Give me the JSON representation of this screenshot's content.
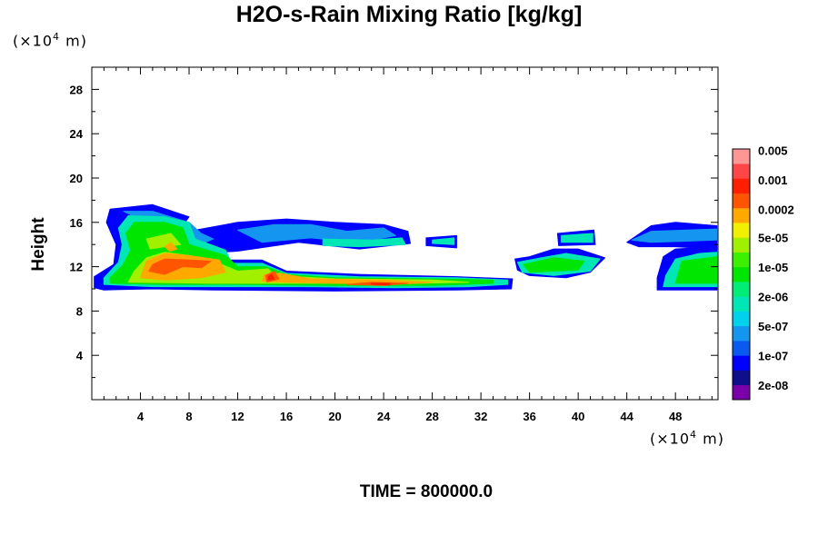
{
  "chart_data": {
    "type": "contour",
    "title": "H2O-s-Rain Mixing Ratio [kg/kg]",
    "ylabel": "Height",
    "x_unit": {
      "prefix": "(×10",
      "exp": "4",
      "suffix": " m)"
    },
    "y_unit": {
      "prefix": "(×10",
      "exp": "4",
      "suffix": " m)"
    },
    "xlim": [
      0,
      51.5
    ],
    "ylim": [
      0,
      30
    ],
    "x_ticks": [
      4,
      8,
      12,
      16,
      20,
      24,
      28,
      32,
      36,
      40,
      44,
      48
    ],
    "y_ticks": [
      4,
      8,
      12,
      16,
      20,
      24,
      28
    ],
    "time_label": "TIME = 800000.0",
    "colorbar": {
      "colors": [
        "#7a00aa",
        "#0d0f8c",
        "#0000ff",
        "#0a5af0",
        "#1496f0",
        "#00d2ee",
        "#00e6b4",
        "#00ee78",
        "#00e600",
        "#3cf000",
        "#a0f000",
        "#f0f000",
        "#ffa800",
        "#ff5500",
        "#ff1e00",
        "#ff4646",
        "#ff9696"
      ],
      "labels": [
        {
          "text": "2e-08",
          "index": 1
        },
        {
          "text": "1e-07",
          "index": 3
        },
        {
          "text": "5e-07",
          "index": 5
        },
        {
          "text": "2e-06",
          "index": 7
        },
        {
          "text": "1e-05",
          "index": 9
        },
        {
          "text": "5e-05",
          "index": 11
        },
        {
          "text": "0.0002",
          "index": 12.9
        },
        {
          "text": "0.001",
          "index": 14.9
        },
        {
          "text": "0.005",
          "index": 16.9
        }
      ]
    },
    "regions": [
      {
        "level": 2,
        "points": [
          [
            0.2,
            10.1
          ],
          [
            1,
            9.9
          ],
          [
            5,
            10.0
          ],
          [
            10,
            9.9
          ],
          [
            20,
            9.8
          ],
          [
            30,
            9.9
          ],
          [
            34.5,
            10.0
          ],
          [
            34.6,
            10.9
          ],
          [
            30,
            11.1
          ],
          [
            22,
            11.3
          ],
          [
            16,
            11.6
          ],
          [
            14,
            12.6
          ],
          [
            11,
            12.6
          ],
          [
            11,
            14.0
          ],
          [
            7,
            15.0
          ],
          [
            8,
            16.5
          ],
          [
            5,
            17.6
          ],
          [
            1.5,
            17.2
          ],
          [
            1.2,
            16.0
          ],
          [
            2,
            14.0
          ],
          [
            1.8,
            12.2
          ],
          [
            0.2,
            11.1
          ]
        ]
      },
      {
        "level": 2,
        "points": [
          [
            8,
            15.2
          ],
          [
            12,
            16.0
          ],
          [
            16,
            16.3
          ],
          [
            20,
            16.0
          ],
          [
            24,
            15.8
          ],
          [
            26,
            15.2
          ],
          [
            26.2,
            14.1
          ],
          [
            22,
            13.6
          ],
          [
            17,
            14.2
          ],
          [
            12,
            13.4
          ],
          [
            9,
            13.2
          ]
        ]
      },
      {
        "level": 2,
        "points": [
          [
            27.5,
            14.6
          ],
          [
            30,
            14.8
          ],
          [
            30,
            13.7
          ],
          [
            27.5,
            13.9
          ]
        ]
      },
      {
        "level": 2,
        "points": [
          [
            34.8,
            12.7
          ],
          [
            36,
            12.9
          ],
          [
            38,
            13.6
          ],
          [
            40,
            13.6
          ],
          [
            42.2,
            12.8
          ],
          [
            41,
            11.5
          ],
          [
            39,
            11.0
          ],
          [
            36,
            11.2
          ],
          [
            35,
            11.7
          ]
        ]
      },
      {
        "level": 2,
        "points": [
          [
            38.3,
            15.0
          ],
          [
            41.3,
            15.3
          ],
          [
            41.4,
            14.0
          ],
          [
            38.4,
            13.9
          ]
        ]
      },
      {
        "level": 2,
        "points": [
          [
            44,
            14.2
          ],
          [
            46,
            15.7
          ],
          [
            48,
            16.0
          ],
          [
            51.4,
            15.7
          ],
          [
            51.4,
            13.6
          ],
          [
            48,
            13.8
          ],
          [
            45,
            13.8
          ]
        ]
      },
      {
        "level": 2,
        "points": [
          [
            47,
            12.9
          ],
          [
            48,
            13.6
          ],
          [
            51.4,
            13.8
          ],
          [
            51.4,
            9.9
          ],
          [
            46.5,
            9.9
          ],
          [
            46.5,
            11.0
          ]
        ]
      },
      {
        "level": 4,
        "points": [
          [
            2.6,
            17.0
          ],
          [
            5,
            17.0
          ],
          [
            8,
            16.0
          ],
          [
            9,
            15.0
          ],
          [
            10,
            14.5
          ],
          [
            8.5,
            13.8
          ]
        ]
      },
      {
        "level": 4,
        "points": [
          [
            12,
            15.3
          ],
          [
            15,
            15.8
          ],
          [
            18,
            15.8
          ],
          [
            21,
            15.2
          ],
          [
            24,
            15.5
          ],
          [
            25,
            14.8
          ],
          [
            22,
            14.2
          ],
          [
            18,
            14.6
          ],
          [
            14,
            14.2
          ]
        ]
      },
      {
        "level": 4,
        "points": [
          [
            44.4,
            14.4
          ],
          [
            46,
            15.2
          ],
          [
            51.4,
            15.4
          ],
          [
            51.4,
            14.4
          ],
          [
            46,
            14.2
          ]
        ]
      },
      {
        "level": 6,
        "points": [
          [
            1.0,
            10.4
          ],
          [
            5,
            10.2
          ],
          [
            10,
            10.2
          ],
          [
            18,
            10.2
          ],
          [
            25,
            10.1
          ],
          [
            31,
            10.2
          ],
          [
            34.2,
            10.4
          ],
          [
            34.2,
            10.8
          ],
          [
            30,
            11.0
          ],
          [
            22,
            11.1
          ],
          [
            16,
            11.4
          ],
          [
            14,
            12.3
          ],
          [
            11.5,
            12.3
          ],
          [
            11,
            13.5
          ],
          [
            8.5,
            14.5
          ],
          [
            8,
            16.0
          ],
          [
            6,
            16.5
          ],
          [
            3,
            16.6
          ],
          [
            2.2,
            15.5
          ],
          [
            2.5,
            14.0
          ],
          [
            2.2,
            12.4
          ],
          [
            1.0,
            11.0
          ]
        ]
      },
      {
        "level": 6,
        "points": [
          [
            19,
            14.5
          ],
          [
            23,
            14.4
          ],
          [
            25.5,
            14.6
          ],
          [
            25.8,
            14.0
          ],
          [
            22,
            13.8
          ],
          [
            19,
            13.9
          ]
        ]
      },
      {
        "level": 6,
        "points": [
          [
            28,
            14.4
          ],
          [
            29.8,
            14.6
          ],
          [
            29.8,
            14.0
          ],
          [
            28,
            14.1
          ]
        ]
      },
      {
        "level": 6,
        "points": [
          [
            38.6,
            14.8
          ],
          [
            41.2,
            15.0
          ],
          [
            41.2,
            14.2
          ],
          [
            38.6,
            14.2
          ]
        ]
      },
      {
        "level": 6,
        "points": [
          [
            35,
            12.4
          ],
          [
            37,
            12.8
          ],
          [
            39,
            13.2
          ],
          [
            41.8,
            12.7
          ],
          [
            41,
            11.6
          ],
          [
            38,
            11.2
          ],
          [
            35.4,
            11.5
          ]
        ]
      },
      {
        "level": 6,
        "points": [
          [
            48,
            12.7
          ],
          [
            50,
            13.2
          ],
          [
            51.4,
            13.3
          ],
          [
            51.4,
            10.2
          ],
          [
            47,
            10.2
          ],
          [
            47.2,
            11.2
          ]
        ]
      },
      {
        "level": 8,
        "points": [
          [
            1.5,
            10.5
          ],
          [
            6,
            10.4
          ],
          [
            12,
            10.4
          ],
          [
            20,
            10.3
          ],
          [
            28,
            10.3
          ],
          [
            33,
            10.5
          ],
          [
            33,
            10.8
          ],
          [
            28,
            10.9
          ],
          [
            20,
            11.0
          ],
          [
            16,
            11.3
          ],
          [
            14.3,
            12.0
          ],
          [
            12,
            12.0
          ],
          [
            11,
            13.0
          ],
          [
            8,
            14.0
          ],
          [
            7.5,
            15.5
          ],
          [
            6,
            16.0
          ],
          [
            3.5,
            16.0
          ],
          [
            2.8,
            15.0
          ],
          [
            3.2,
            13.5
          ],
          [
            2.6,
            12.2
          ],
          [
            1.5,
            11.0
          ]
        ]
      },
      {
        "level": 8,
        "points": [
          [
            35.5,
            12.2
          ],
          [
            38,
            12.8
          ],
          [
            40.5,
            12.5
          ],
          [
            40,
            11.7
          ],
          [
            36,
            11.5
          ]
        ]
      },
      {
        "level": 8,
        "points": [
          [
            48.5,
            12.5
          ],
          [
            51.4,
            12.9
          ],
          [
            51.4,
            10.5
          ],
          [
            48,
            10.5
          ]
        ]
      },
      {
        "level": 10,
        "points": [
          [
            3,
            10.6
          ],
          [
            10,
            10.5
          ],
          [
            18,
            10.5
          ],
          [
            27,
            10.5
          ],
          [
            31,
            10.6
          ],
          [
            28,
            10.8
          ],
          [
            20,
            10.9
          ],
          [
            15,
            11.2
          ],
          [
            14.5,
            11.8
          ],
          [
            12,
            11.6
          ],
          [
            10,
            12.5
          ],
          [
            8,
            13.0
          ],
          [
            6,
            13.3
          ],
          [
            4.5,
            12.8
          ],
          [
            3.5,
            11.6
          ]
        ]
      },
      {
        "level": 10,
        "points": [
          [
            4.5,
            14.5
          ],
          [
            6.5,
            15.0
          ],
          [
            7.3,
            14.0
          ],
          [
            6,
            13.8
          ],
          [
            4.8,
            13.6
          ]
        ]
      },
      {
        "level": 12,
        "points": [
          [
            4,
            11.0
          ],
          [
            6,
            10.8
          ],
          [
            9,
            11.0
          ],
          [
            11,
            11.5
          ],
          [
            10.5,
            12.6
          ],
          [
            8,
            13.0
          ],
          [
            6,
            13.2
          ],
          [
            4.5,
            12.5
          ]
        ]
      },
      {
        "level": 12,
        "points": [
          [
            14,
            10.7
          ],
          [
            16,
            10.6
          ],
          [
            20,
            10.5
          ],
          [
            25,
            10.4
          ],
          [
            28,
            10.6
          ],
          [
            24,
            10.8
          ],
          [
            18,
            10.9
          ],
          [
            15.5,
            11.4
          ],
          [
            14.2,
            11.3
          ]
        ]
      },
      {
        "level": 12,
        "points": [
          [
            6,
            13.8
          ],
          [
            6.5,
            14.2
          ],
          [
            7,
            13.6
          ],
          [
            6.4,
            13.4
          ]
        ]
      },
      {
        "level": 13,
        "points": [
          [
            4.7,
            11.6
          ],
          [
            6,
            11.3
          ],
          [
            7.5,
            12.0
          ],
          [
            9,
            11.9
          ],
          [
            9.8,
            12.5
          ],
          [
            8,
            12.6
          ],
          [
            6,
            12.7
          ],
          [
            5.0,
            12.2
          ]
        ]
      },
      {
        "level": 13,
        "points": [
          [
            14.4,
            10.6
          ],
          [
            15.4,
            10.9
          ],
          [
            15.0,
            11.6
          ],
          [
            14.3,
            11.2
          ]
        ]
      },
      {
        "level": 13,
        "points": [
          [
            21,
            10.4
          ],
          [
            24,
            10.3
          ],
          [
            26,
            10.5
          ],
          [
            23,
            10.6
          ]
        ]
      },
      {
        "level": 14,
        "points": [
          [
            14.5,
            10.8
          ],
          [
            15.0,
            10.9
          ],
          [
            14.8,
            11.3
          ],
          [
            14.5,
            11.1
          ]
        ]
      },
      {
        "level": 14,
        "points": [
          [
            23,
            10.4
          ],
          [
            24.5,
            10.35
          ],
          [
            24.5,
            10.5
          ],
          [
            23,
            10.5
          ]
        ]
      }
    ]
  }
}
